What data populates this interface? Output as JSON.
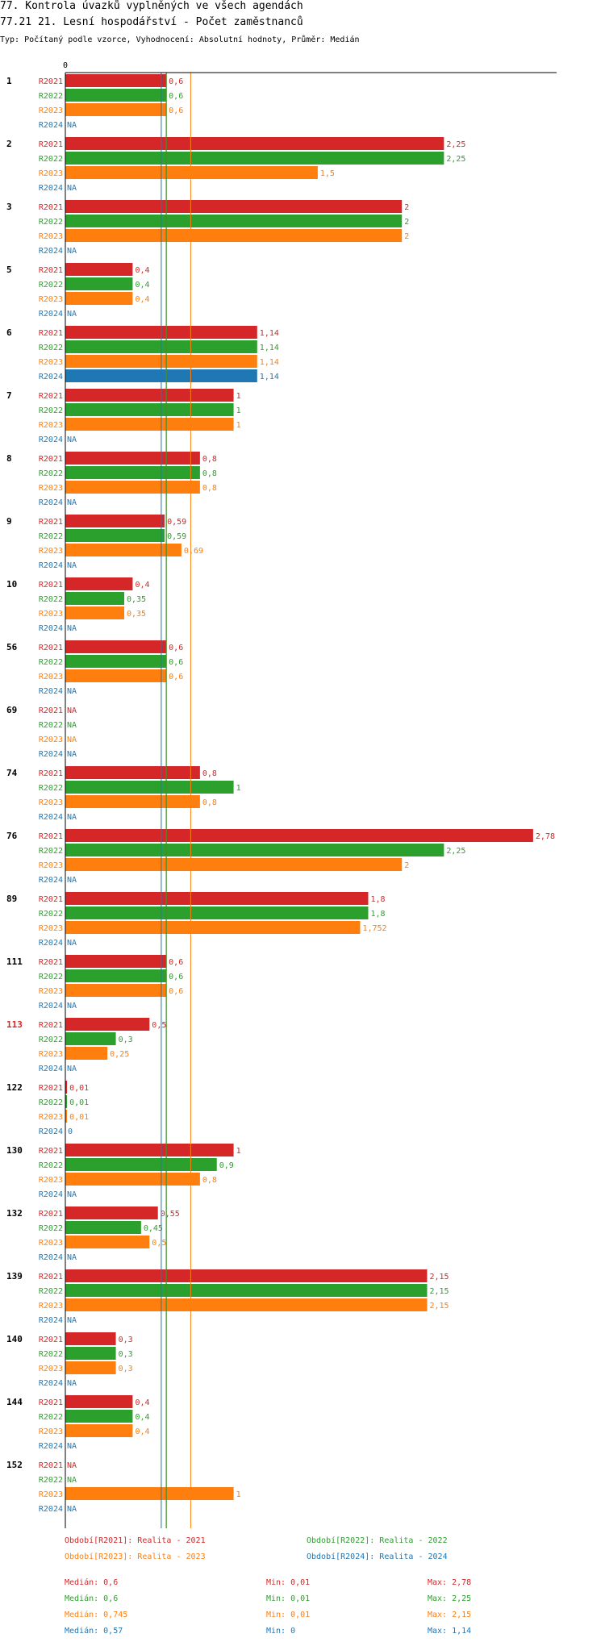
{
  "header": {
    "title_line1": "77. Kontrola úvazků vyplněných ve všech agendách",
    "title_line2": "77.21 21. Lesní hospodářství - Počet zaměstnanců",
    "subtitle": "Typ: Počítaný podle vzorce, Vyhodnocení: Absolutní hodnoty, Průměr: Medián"
  },
  "colors": {
    "R2021": "#d62728",
    "R2022": "#2ca02c",
    "R2023": "#ff7f0e",
    "R2024": "#1f77b4",
    "highlight_group": "#d62728"
  },
  "chart_data": {
    "type": "bar",
    "orientation": "horizontal",
    "title": "77.21 21. Lesní hospodářství - Počet zaměstnanců",
    "axis_zero_label": "0",
    "series_names": [
      "R2021",
      "R2022",
      "R2023",
      "R2024"
    ],
    "na_label": "NA",
    "groups": [
      {
        "label": "1",
        "values": [
          "0,6",
          "0,6",
          "0,6",
          "NA"
        ]
      },
      {
        "label": "2",
        "values": [
          "2,25",
          "2,25",
          "1,5",
          "NA"
        ]
      },
      {
        "label": "3",
        "values": [
          "2",
          "2",
          "2",
          "NA"
        ]
      },
      {
        "label": "5",
        "values": [
          "0,4",
          "0,4",
          "0,4",
          "NA"
        ]
      },
      {
        "label": "6",
        "values": [
          "1,14",
          "1,14",
          "1,14",
          "1,14"
        ]
      },
      {
        "label": "7",
        "values": [
          "1",
          "1",
          "1",
          "NA"
        ]
      },
      {
        "label": "8",
        "values": [
          "0,8",
          "0,8",
          "0,8",
          "NA"
        ]
      },
      {
        "label": "9",
        "values": [
          "0,59",
          "0,59",
          "0,69",
          "NA"
        ]
      },
      {
        "label": "10",
        "values": [
          "0,4",
          "0,35",
          "0,35",
          "NA"
        ]
      },
      {
        "label": "56",
        "values": [
          "0,6",
          "0,6",
          "0,6",
          "NA"
        ]
      },
      {
        "label": "69",
        "values": [
          "NA",
          "NA",
          "NA",
          "NA"
        ]
      },
      {
        "label": "74",
        "values": [
          "0,8",
          "1",
          "0,8",
          "NA"
        ]
      },
      {
        "label": "76",
        "values": [
          "2,78",
          "2,25",
          "2",
          "NA"
        ]
      },
      {
        "label": "89",
        "values": [
          "1,8",
          "1,8",
          "1,752",
          "NA"
        ]
      },
      {
        "label": "111",
        "values": [
          "0,6",
          "0,6",
          "0,6",
          "NA"
        ]
      },
      {
        "label": "113",
        "values": [
          "0,5",
          "0,3",
          "0,25",
          "NA"
        ],
        "highlight": true
      },
      {
        "label": "122",
        "values": [
          "0,01",
          "0,01",
          "0,01",
          "0"
        ]
      },
      {
        "label": "130",
        "values": [
          "1",
          "0,9",
          "0,8",
          "NA"
        ]
      },
      {
        "label": "132",
        "values": [
          "0,55",
          "0,45",
          "0,5",
          "NA"
        ]
      },
      {
        "label": "139",
        "values": [
          "2,15",
          "2,15",
          "2,15",
          "NA"
        ]
      },
      {
        "label": "140",
        "values": [
          "0,3",
          "0,3",
          "0,3",
          "NA"
        ]
      },
      {
        "label": "144",
        "values": [
          "0,4",
          "0,4",
          "0,4",
          "NA"
        ]
      },
      {
        "label": "152",
        "values": [
          "NA",
          "NA",
          "1",
          "NA"
        ]
      }
    ],
    "medians": {
      "R2021": 0.6,
      "R2022": 0.6,
      "R2023": 0.745,
      "R2024": 0.57
    },
    "xlim": [
      0,
      2.78
    ]
  },
  "legend": {
    "r2021": "Období[R2021]: Realita - 2021",
    "r2022": "Období[R2022]: Realita - 2022",
    "r2023": "Období[R2023]: Realita - 2023",
    "r2024": "Období[R2024]: Realita - 2024"
  },
  "stats": [
    {
      "series": "R2021",
      "median": "Medián: 0,6",
      "min": "Min: 0,01",
      "max": "Max: 2,78"
    },
    {
      "series": "R2022",
      "median": "Medián: 0,6",
      "min": "Min: 0,01",
      "max": "Max: 2,25"
    },
    {
      "series": "R2023",
      "median": "Medián: 0,745",
      "min": "Min: 0,01",
      "max": "Max: 2,15"
    },
    {
      "series": "R2024",
      "median": "Medián: 0,57",
      "min": "Min: 0",
      "max": "Max: 1,14"
    }
  ]
}
